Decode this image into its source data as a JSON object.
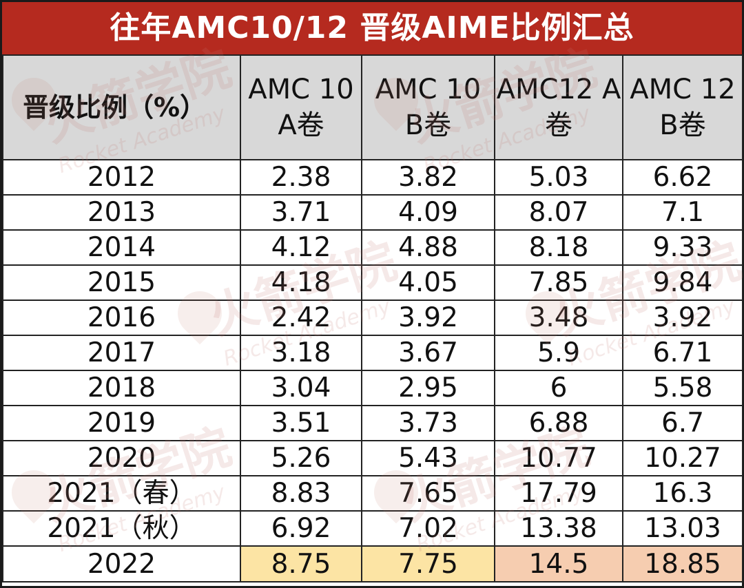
{
  "title": "往年AMC10/12 晋级AIME比例汇总",
  "watermark": {
    "text": "火箭学院",
    "subtext": "Rocket Academy"
  },
  "headers": [
    "晋级比例（%）",
    "AMC 10 A卷",
    "AMC 10 B卷",
    "AMC12 A卷",
    "AMC 12 B卷"
  ],
  "rows": [
    [
      "2012",
      "2.38",
      "3.82",
      "5.03",
      "6.62"
    ],
    [
      "2013",
      "3.71",
      "4.09",
      "8.07",
      "7.1"
    ],
    [
      "2014",
      "4.12",
      "4.88",
      "8.18",
      "9.33"
    ],
    [
      "2015",
      "4.18",
      "4.05",
      "7.85",
      "9.84"
    ],
    [
      "2016",
      "2.42",
      "3.92",
      "3.48",
      "3.92"
    ],
    [
      "2017",
      "3.18",
      "3.67",
      "5.9",
      "6.71"
    ],
    [
      "2018",
      "3.04",
      "2.95",
      "6",
      "5.58"
    ],
    [
      "2019",
      "3.51",
      "3.73",
      "6.88",
      "6.7"
    ],
    [
      "2020",
      "5.26",
      "5.43",
      "10.77",
      "10.27"
    ],
    [
      "2021（春）",
      "8.83",
      "7.65",
      "17.79",
      "16.3"
    ],
    [
      "2021（秋）",
      "6.92",
      "7.02",
      "13.38",
      "13.03"
    ],
    [
      "2022",
      "8.75",
      "7.75",
      "14.5",
      "18.85"
    ]
  ],
  "highlight_colors": {
    "amc10": "#fce4a4",
    "amc12": "#f6cdb0"
  }
}
